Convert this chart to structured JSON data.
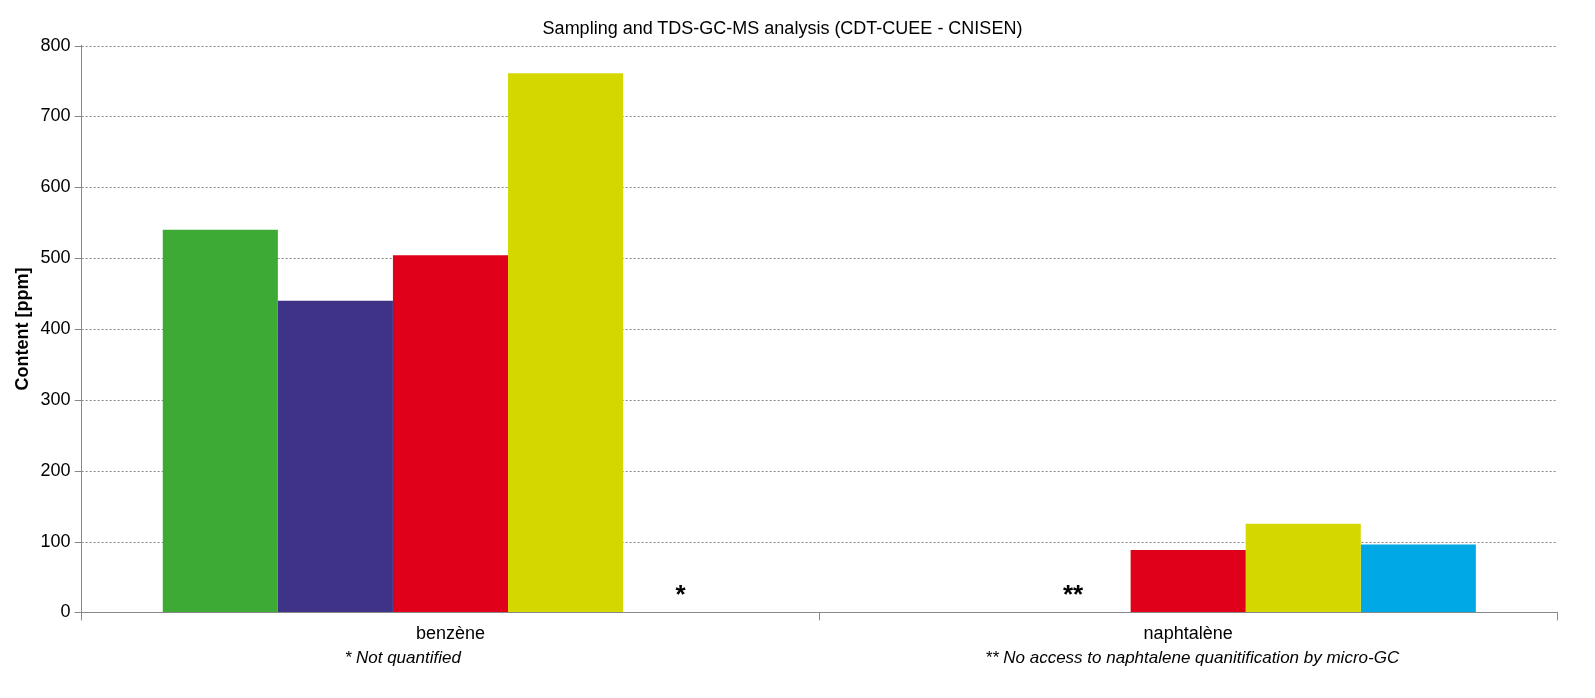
{
  "chart_data": {
    "type": "bar",
    "title": "Sampling and TDS-GC-MS analysis (CDT-CUEE - CNISEN)",
    "ylabel": "Content [ppm]",
    "categories": [
      "benzène",
      "naphtalène"
    ],
    "series": [
      {
        "color": "#3caa35",
        "values": [
          540,
          null
        ]
      },
      {
        "color": "#3f3387",
        "values": [
          440,
          null
        ]
      },
      {
        "color": "#e1001a",
        "values": [
          504,
          88
        ]
      },
      {
        "color": "#d4d800",
        "values": [
          761,
          125
        ]
      },
      {
        "color": "#00a9e5",
        "values": [
          null,
          96
        ]
      }
    ],
    "ylim": [
      0,
      800
    ],
    "yticks": [
      0,
      100,
      200,
      300,
      400,
      500,
      600,
      700,
      800
    ],
    "grid": "y",
    "legend": false,
    "annotations": [
      "*",
      "**",
      "* Not quantified",
      "** No access to naphtalene quanitification by micro-GC"
    ]
  }
}
